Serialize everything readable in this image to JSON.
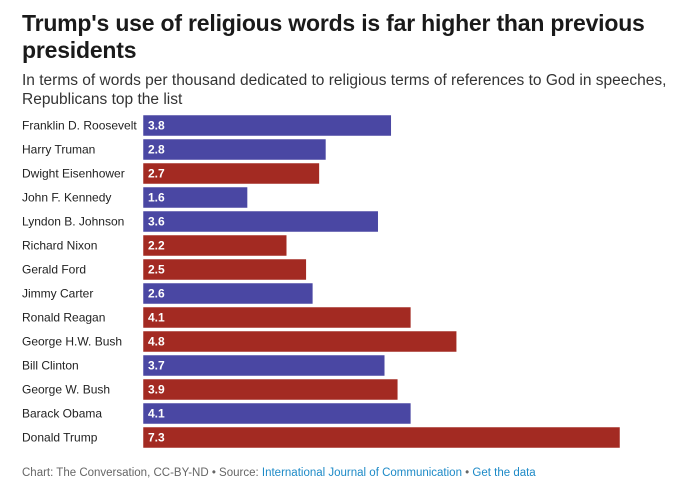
{
  "colors": {
    "democrat": "#4a47a3",
    "republican": "#a32a22",
    "link": "#1d8ac7"
  },
  "chart_data": {
    "type": "bar",
    "orientation": "horizontal",
    "title": "Trump's use of religious words is far higher than previous presidents",
    "subtitle": "In terms of words per thousand dedicated to religious terms of references to God in speeches, Republicans top the list",
    "categories": [
      "Franklin D. Roosevelt",
      "Harry Truman",
      "Dwight Eisenhower",
      "John F. Kennedy",
      "Lyndon B. Johnson",
      "Richard Nixon",
      "Gerald Ford",
      "Jimmy Carter",
      "Ronald Reagan",
      "George H.W. Bush",
      "Bill Clinton",
      "George W. Bush",
      "Barack Obama",
      "Donald Trump"
    ],
    "values": [
      3.8,
      2.8,
      2.7,
      1.6,
      3.6,
      2.2,
      2.5,
      2.6,
      4.1,
      4.8,
      3.7,
      3.9,
      4.1,
      7.3
    ],
    "value_labels": [
      "3.8",
      "2.8",
      "2.7",
      "1.6",
      "3.6",
      "2.2",
      "2.5",
      "2.6",
      "4.1",
      "4.8",
      "3.7",
      "3.9",
      "4.1",
      "7.3"
    ],
    "party": [
      "democrat",
      "democrat",
      "republican",
      "democrat",
      "democrat",
      "republican",
      "republican",
      "democrat",
      "republican",
      "republican",
      "democrat",
      "republican",
      "democrat",
      "republican"
    ],
    "xlim": [
      0,
      7.3
    ],
    "xlabel": "",
    "ylabel": "",
    "grid": false,
    "legend": "none"
  },
  "footer": {
    "credit": "Chart: The Conversation, CC-BY-ND",
    "sep1": " • Source: ",
    "source_link": "International Journal of Communication",
    "sep2": " • ",
    "data_link": "Get the data"
  }
}
